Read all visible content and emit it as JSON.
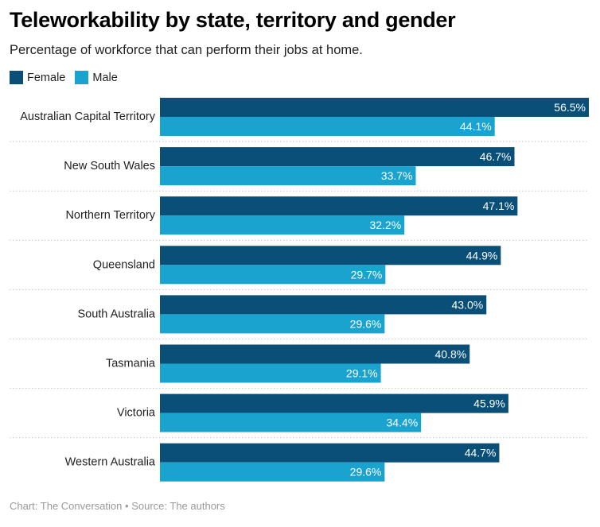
{
  "title": "Teleworkability by state, territory and gender",
  "subtitle": "Percentage of workforce that can perform their jobs at home.",
  "footer": {
    "chart_credit": "Chart: The Conversation",
    "separator": "•",
    "source": "Source: The authors"
  },
  "colors": {
    "female": "#0a4f78",
    "male": "#1ba3cf",
    "gridline": "#c8c8c8"
  },
  "chart_data": {
    "type": "bar",
    "orientation": "horizontal",
    "title": "Teleworkability by state, territory and gender",
    "subtitle": "Percentage of workforce that can perform their jobs at home.",
    "legend_position": "top-left",
    "value_suffix": "%",
    "xlim": [
      0,
      56.5
    ],
    "categories": [
      "Australian Capital Territory",
      "New South Wales",
      "Northern Territory",
      "Queensland",
      "South Australia",
      "Tasmania",
      "Victoria",
      "Western Australia"
    ],
    "series": [
      {
        "name": "Female",
        "color": "#0a4f78",
        "values": [
          56.5,
          46.7,
          47.1,
          44.9,
          43.0,
          40.8,
          45.9,
          44.7
        ]
      },
      {
        "name": "Male",
        "color": "#1ba3cf",
        "values": [
          44.1,
          33.7,
          32.2,
          29.7,
          29.6,
          29.1,
          34.4,
          29.6
        ]
      }
    ]
  }
}
